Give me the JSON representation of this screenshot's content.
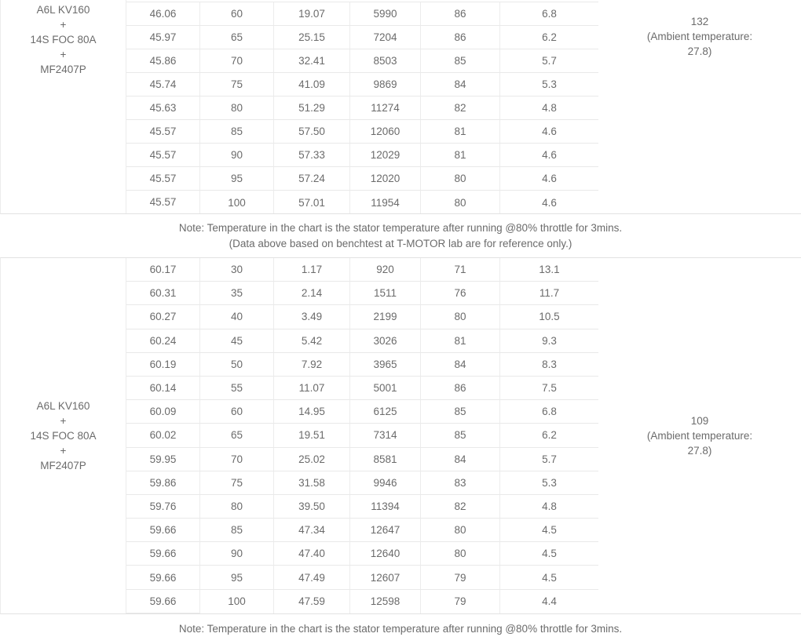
{
  "colors": {
    "text": "#6b6b6b",
    "border_inner": "#e9e9e9",
    "border_outer": "#e2e2e2",
    "background": "#ffffff"
  },
  "table1": {
    "item": [
      "A6L KV160",
      "+",
      "14S FOC 80A",
      "+",
      "MF2407P"
    ],
    "rows": [
      [
        "46.06",
        "60",
        "19.07",
        "5990",
        "86",
        "6.8"
      ],
      [
        "45.97",
        "65",
        "25.15",
        "7204",
        "86",
        "6.2"
      ],
      [
        "45.86",
        "70",
        "32.41",
        "8503",
        "85",
        "5.7"
      ],
      [
        "45.74",
        "75",
        "41.09",
        "9869",
        "84",
        "5.3"
      ],
      [
        "45.63",
        "80",
        "51.29",
        "11274",
        "82",
        "4.8"
      ],
      [
        "45.57",
        "85",
        "57.50",
        "12060",
        "81",
        "4.6"
      ],
      [
        "45.57",
        "90",
        "57.33",
        "12029",
        "81",
        "4.6"
      ],
      [
        "45.57",
        "95",
        "57.24",
        "12020",
        "80",
        "4.6"
      ],
      [
        "45.57",
        "100",
        "57.01",
        "11954",
        "80",
        "4.6"
      ]
    ],
    "temperature": [
      "132",
      "(Ambient temperature:",
      "27.8)"
    ]
  },
  "note1": [
    "Note: Temperature in the chart is the stator temperature after running @80% throttle for 3mins.",
    "(Data above based on benchtest at T-MOTOR lab are for reference only.)"
  ],
  "table2": {
    "item": [
      "A6L KV160",
      "+",
      "14S FOC 80A",
      "+",
      "MF2407P"
    ],
    "rows": [
      [
        "60.17",
        "30",
        "1.17",
        "920",
        "71",
        "13.1"
      ],
      [
        "60.31",
        "35",
        "2.14",
        "1511",
        "76",
        "11.7"
      ],
      [
        "60.27",
        "40",
        "3.49",
        "2199",
        "80",
        "10.5"
      ],
      [
        "60.24",
        "45",
        "5.42",
        "3026",
        "81",
        "9.3"
      ],
      [
        "60.19",
        "50",
        "7.92",
        "3965",
        "84",
        "8.3"
      ],
      [
        "60.14",
        "55",
        "11.07",
        "5001",
        "86",
        "7.5"
      ],
      [
        "60.09",
        "60",
        "14.95",
        "6125",
        "85",
        "6.8"
      ],
      [
        "60.02",
        "65",
        "19.51",
        "7314",
        "85",
        "6.2"
      ],
      [
        "59.95",
        "70",
        "25.02",
        "8581",
        "84",
        "5.7"
      ],
      [
        "59.86",
        "75",
        "31.58",
        "9946",
        "83",
        "5.3"
      ],
      [
        "59.76",
        "80",
        "39.50",
        "11394",
        "82",
        "4.8"
      ],
      [
        "59.66",
        "85",
        "47.34",
        "12647",
        "80",
        "4.5"
      ],
      [
        "59.66",
        "90",
        "47.40",
        "12640",
        "80",
        "4.5"
      ],
      [
        "59.66",
        "95",
        "47.49",
        "12607",
        "79",
        "4.5"
      ],
      [
        "59.66",
        "100",
        "47.59",
        "12598",
        "79",
        "4.4"
      ]
    ],
    "temperature": [
      "109",
      "(Ambient temperature:",
      "27.8)"
    ]
  },
  "note2": [
    "Note: Temperature in the chart is the stator temperature after running @80% throttle for 3mins."
  ]
}
